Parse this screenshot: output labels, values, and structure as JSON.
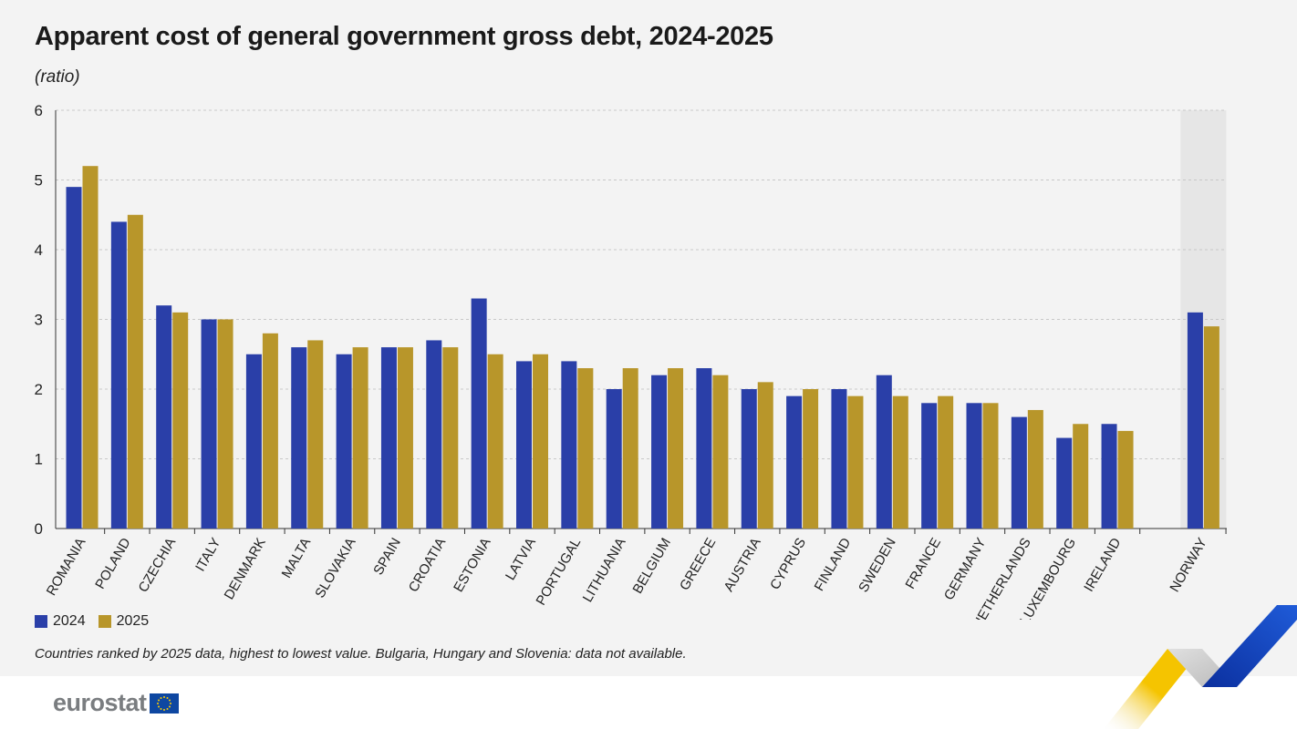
{
  "title": "Apparent cost of general government gross debt, 2024-2025",
  "subtitle": "(ratio)",
  "note": "Countries ranked by 2025 data, highest to lowest value. Bulgaria, Hungary and Slovenia: data not available.",
  "logo_text": "eurostat",
  "colors": {
    "s2024": "#2a3fa8",
    "s2025": "#b8962a",
    "highlight": "#e6e6e6",
    "grid": "#c8c8c8",
    "axis": "#333333"
  },
  "chart_data": {
    "type": "bar",
    "categories": [
      "ROMANIA",
      "POLAND",
      "CZECHIA",
      "ITALY",
      "DENMARK",
      "MALTA",
      "SLOVAKIA",
      "SPAIN",
      "CROATIA",
      "ESTONIA",
      "LATVIA",
      "PORTUGAL",
      "LITHUANIA",
      "BELGIUM",
      "GREECE",
      "AUSTRIA",
      "CYPRUS",
      "FINLAND",
      "SWEDEN",
      "FRANCE",
      "GERMANY",
      "NETHERLANDS",
      "LUXEMBOURG",
      "IRELAND",
      "NORWAY"
    ],
    "series": [
      {
        "name": "2024",
        "values": [
          4.9,
          4.4,
          3.2,
          3.0,
          2.5,
          2.6,
          2.5,
          2.6,
          2.7,
          3.3,
          2.4,
          2.4,
          2.0,
          2.2,
          2.3,
          2.0,
          1.9,
          2.0,
          2.2,
          1.8,
          1.8,
          1.6,
          1.3,
          1.5,
          3.1
        ]
      },
      {
        "name": "2025",
        "values": [
          5.2,
          4.5,
          3.1,
          3.0,
          2.8,
          2.7,
          2.6,
          2.6,
          2.6,
          2.5,
          2.5,
          2.3,
          2.3,
          2.3,
          2.2,
          2.1,
          2.0,
          1.9,
          1.9,
          1.9,
          1.8,
          1.7,
          1.5,
          1.4,
          2.9
        ]
      }
    ],
    "highlighted_category": "NORWAY",
    "ylim": [
      0,
      6
    ],
    "yticks": [
      "0",
      "1",
      "2",
      "3",
      "4",
      "5",
      "6"
    ],
    "grid": true,
    "legend_position": "bottom-left"
  }
}
